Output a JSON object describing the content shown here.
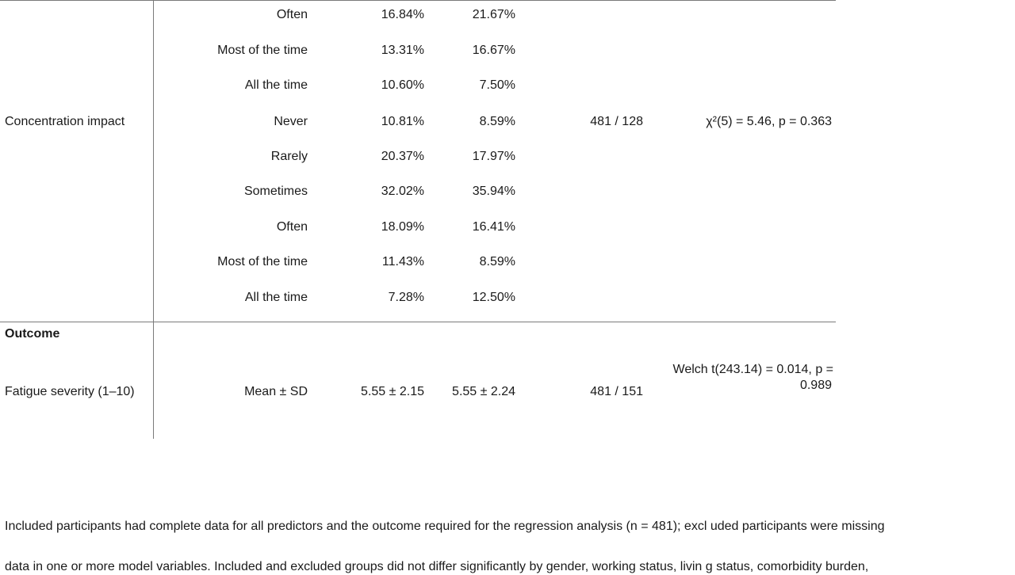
{
  "table": {
    "block1_rows": [
      {
        "level": "Often",
        "included": "16.84%",
        "excluded": "21.67%"
      },
      {
        "level": "Most of the time",
        "included": "13.31%",
        "excluded": "16.67%"
      },
      {
        "level": "All the time",
        "included": "10.60%",
        "excluded": "7.50%"
      }
    ],
    "concentration": {
      "label": "Concentration impact",
      "n": "481 / 128",
      "test": "χ²(5) = 5.46, p = 0.363",
      "rows": [
        {
          "level": "Never",
          "included": "10.81%",
          "excluded": "8.59%"
        },
        {
          "level": "Rarely",
          "included": "20.37%",
          "excluded": "17.97%"
        },
        {
          "level": "Sometimes",
          "included": "32.02%",
          "excluded": "35.94%"
        },
        {
          "level": "Often",
          "included": "18.09%",
          "excluded": "16.41%"
        },
        {
          "level": "Most of the time",
          "included": "11.43%",
          "excluded": "8.59%"
        },
        {
          "level": "All the time",
          "included": "7.28%",
          "excluded": "12.50%"
        }
      ]
    },
    "outcome": {
      "section_label": "Outcome",
      "label": "Fatigue severity (1–10)",
      "stat": "Mean ± SD",
      "included": "5.55 ± 2.15",
      "excluded": "5.55 ± 2.24",
      "n": "481 / 151",
      "test_line1": "Welch t(243.14) = 0.014, p =",
      "test_line2": "0.989"
    }
  },
  "note": {
    "line1": "Included participants had complete data for all predictors and the outcome required for the regression analysis (n = 481); excl uded participants were missing",
    "line2": "data in one or more model variables. Included and excluded groups did not differ significantly by gender, working status, livin g status, comorbidity burden,"
  }
}
